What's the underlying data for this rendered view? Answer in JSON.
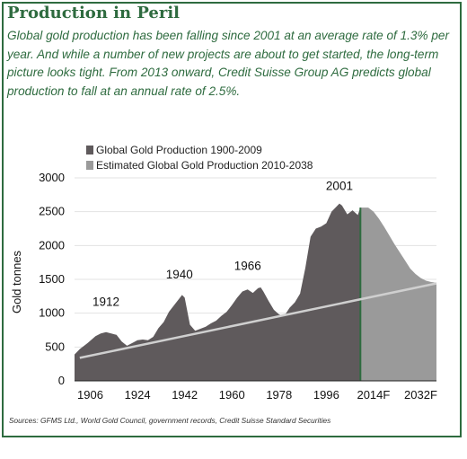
{
  "title": "Production in Peril",
  "subtitle": "Global gold production has been falling since 2001 at an average rate of 1.3% per year. And while a number of new projects are about to get started, the long-term picture looks tight. From 2013 onward, Credit Suisse Group AG predicts global production to fall at an annual rate of 2.5%.",
  "source": "Sources: GFMS Ltd., World Gold Council, government records, Credit Suisse Standard Securities",
  "colors": {
    "accent": "#2e6b3f",
    "historical": "#5f5a5c",
    "estimated": "#9a9a9a",
    "trend": "#cfcfcf"
  },
  "chart_data": {
    "type": "area",
    "ylabel": "Gold tonnes",
    "ylim": [
      0,
      3000
    ],
    "xlim": [
      1900,
      2038
    ],
    "yticks": [
      0,
      500,
      1000,
      1500,
      2000,
      2500,
      3000
    ],
    "xticks": [
      "1906",
      "1924",
      "1942",
      "1960",
      "1978",
      "1996",
      "2014F",
      "2032F"
    ],
    "xtick_values": [
      1906,
      1924,
      1942,
      1960,
      1978,
      1996,
      2014,
      2032
    ],
    "grid": true,
    "series": [
      {
        "name": "Global Gold Production 1900-2009",
        "color": "#5f5a5c",
        "x": [
          1900,
          1902,
          1905,
          1908,
          1910,
          1912,
          1914,
          1916,
          1918,
          1920,
          1922,
          1924,
          1926,
          1928,
          1930,
          1932,
          1934,
          1936,
          1938,
          1940,
          1941,
          1942,
          1944,
          1946,
          1948,
          1950,
          1952,
          1954,
          1956,
          1958,
          1960,
          1962,
          1964,
          1966,
          1968,
          1970,
          1971,
          1972,
          1974,
          1976,
          1978,
          1980,
          1982,
          1984,
          1986,
          1988,
          1990,
          1992,
          1994,
          1996,
          1998,
          2000,
          2001,
          2002,
          2004,
          2006,
          2008,
          2009
        ],
        "values": [
          390,
          470,
          560,
          660,
          700,
          720,
          700,
          680,
          580,
          520,
          560,
          600,
          610,
          600,
          650,
          780,
          870,
          1020,
          1120,
          1220,
          1270,
          1230,
          830,
          740,
          770,
          800,
          850,
          890,
          960,
          1020,
          1120,
          1230,
          1320,
          1350,
          1300,
          1370,
          1380,
          1320,
          1180,
          1050,
          980,
          960,
          1080,
          1160,
          1290,
          1670,
          2130,
          2250,
          2280,
          2330,
          2500,
          2580,
          2620,
          2590,
          2460,
          2520,
          2450,
          2560
        ]
      },
      {
        "name": "Estimated Global Gold Production 2010-2038",
        "color": "#9a9a9a",
        "x": [
          2009,
          2012,
          2014,
          2016,
          2018,
          2020,
          2022,
          2024,
          2026,
          2028,
          2030,
          2032,
          2034,
          2036,
          2038
        ],
        "values": [
          2560,
          2560,
          2500,
          2400,
          2280,
          2150,
          2020,
          1900,
          1780,
          1660,
          1580,
          1520,
          1480,
          1460,
          1450
        ]
      }
    ],
    "trendline": {
      "x": [
        1902,
        2038
      ],
      "values": [
        340,
        1440
      ]
    },
    "annotations": [
      {
        "text": "1912",
        "x": 1912,
        "y": 1110
      },
      {
        "text": "1940",
        "x": 1940,
        "y": 1510
      },
      {
        "text": "1966",
        "x": 1966,
        "y": 1640
      },
      {
        "text": "2001",
        "x": 2001,
        "y": 2820
      }
    ]
  }
}
